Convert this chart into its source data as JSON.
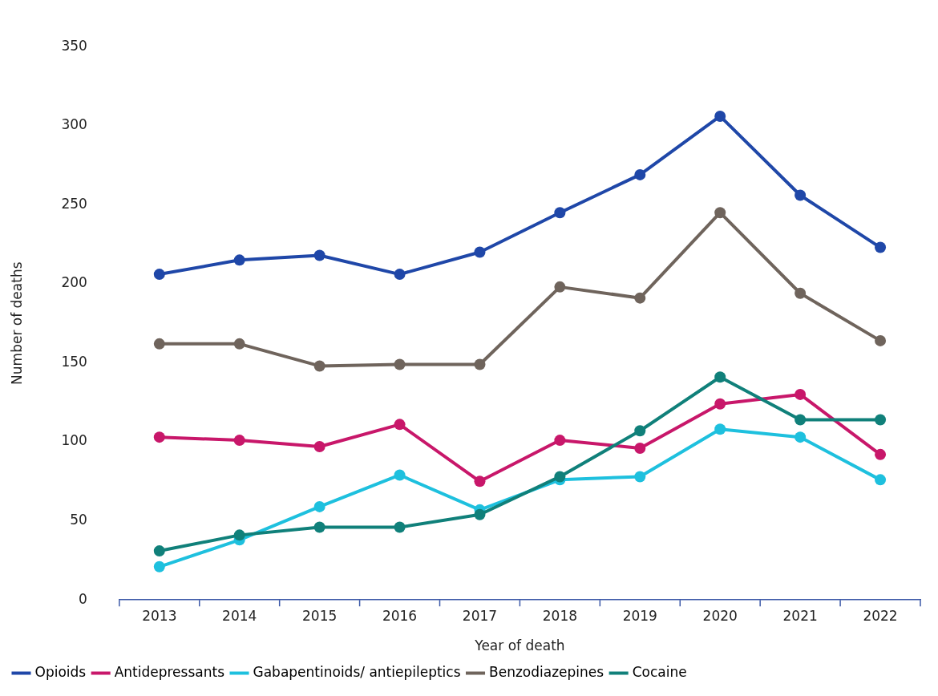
{
  "chart_data": {
    "type": "line",
    "xlabel": "Year of death",
    "ylabel": "Number of deaths",
    "categories": [
      "2013",
      "2014",
      "2015",
      "2016",
      "2017",
      "2018",
      "2019",
      "2020",
      "2021",
      "2022"
    ],
    "ylim": [
      0,
      350
    ],
    "yticks": [
      0,
      50,
      100,
      150,
      200,
      250,
      300,
      350
    ],
    "grid": false,
    "legend": "bottom",
    "marker": "circle",
    "line_style": "solid",
    "series": [
      {
        "name": "Opioids",
        "color": "#1f47a8",
        "values": [
          206,
          215,
          218,
          206,
          220,
          245,
          269,
          306,
          256,
          223
        ]
      },
      {
        "name": "Antidepressants",
        "color": "#c8176a",
        "values": [
          103,
          101,
          97,
          111,
          75,
          101,
          96,
          124,
          130,
          92
        ]
      },
      {
        "name": "Gabapentinoids/ antiepileptics",
        "color": "#1ec0de",
        "values": [
          21,
          38,
          59,
          79,
          57,
          76,
          78,
          108,
          103,
          76
        ]
      },
      {
        "name": "Benzodiazepines",
        "color": "#6f645c",
        "values": [
          162,
          162,
          148,
          149,
          149,
          198,
          191,
          245,
          194,
          164
        ]
      },
      {
        "name": "Cocaine",
        "color": "#10807a",
        "values": [
          31,
          41,
          46,
          46,
          54,
          78,
          107,
          141,
          114,
          114
        ]
      }
    ]
  }
}
